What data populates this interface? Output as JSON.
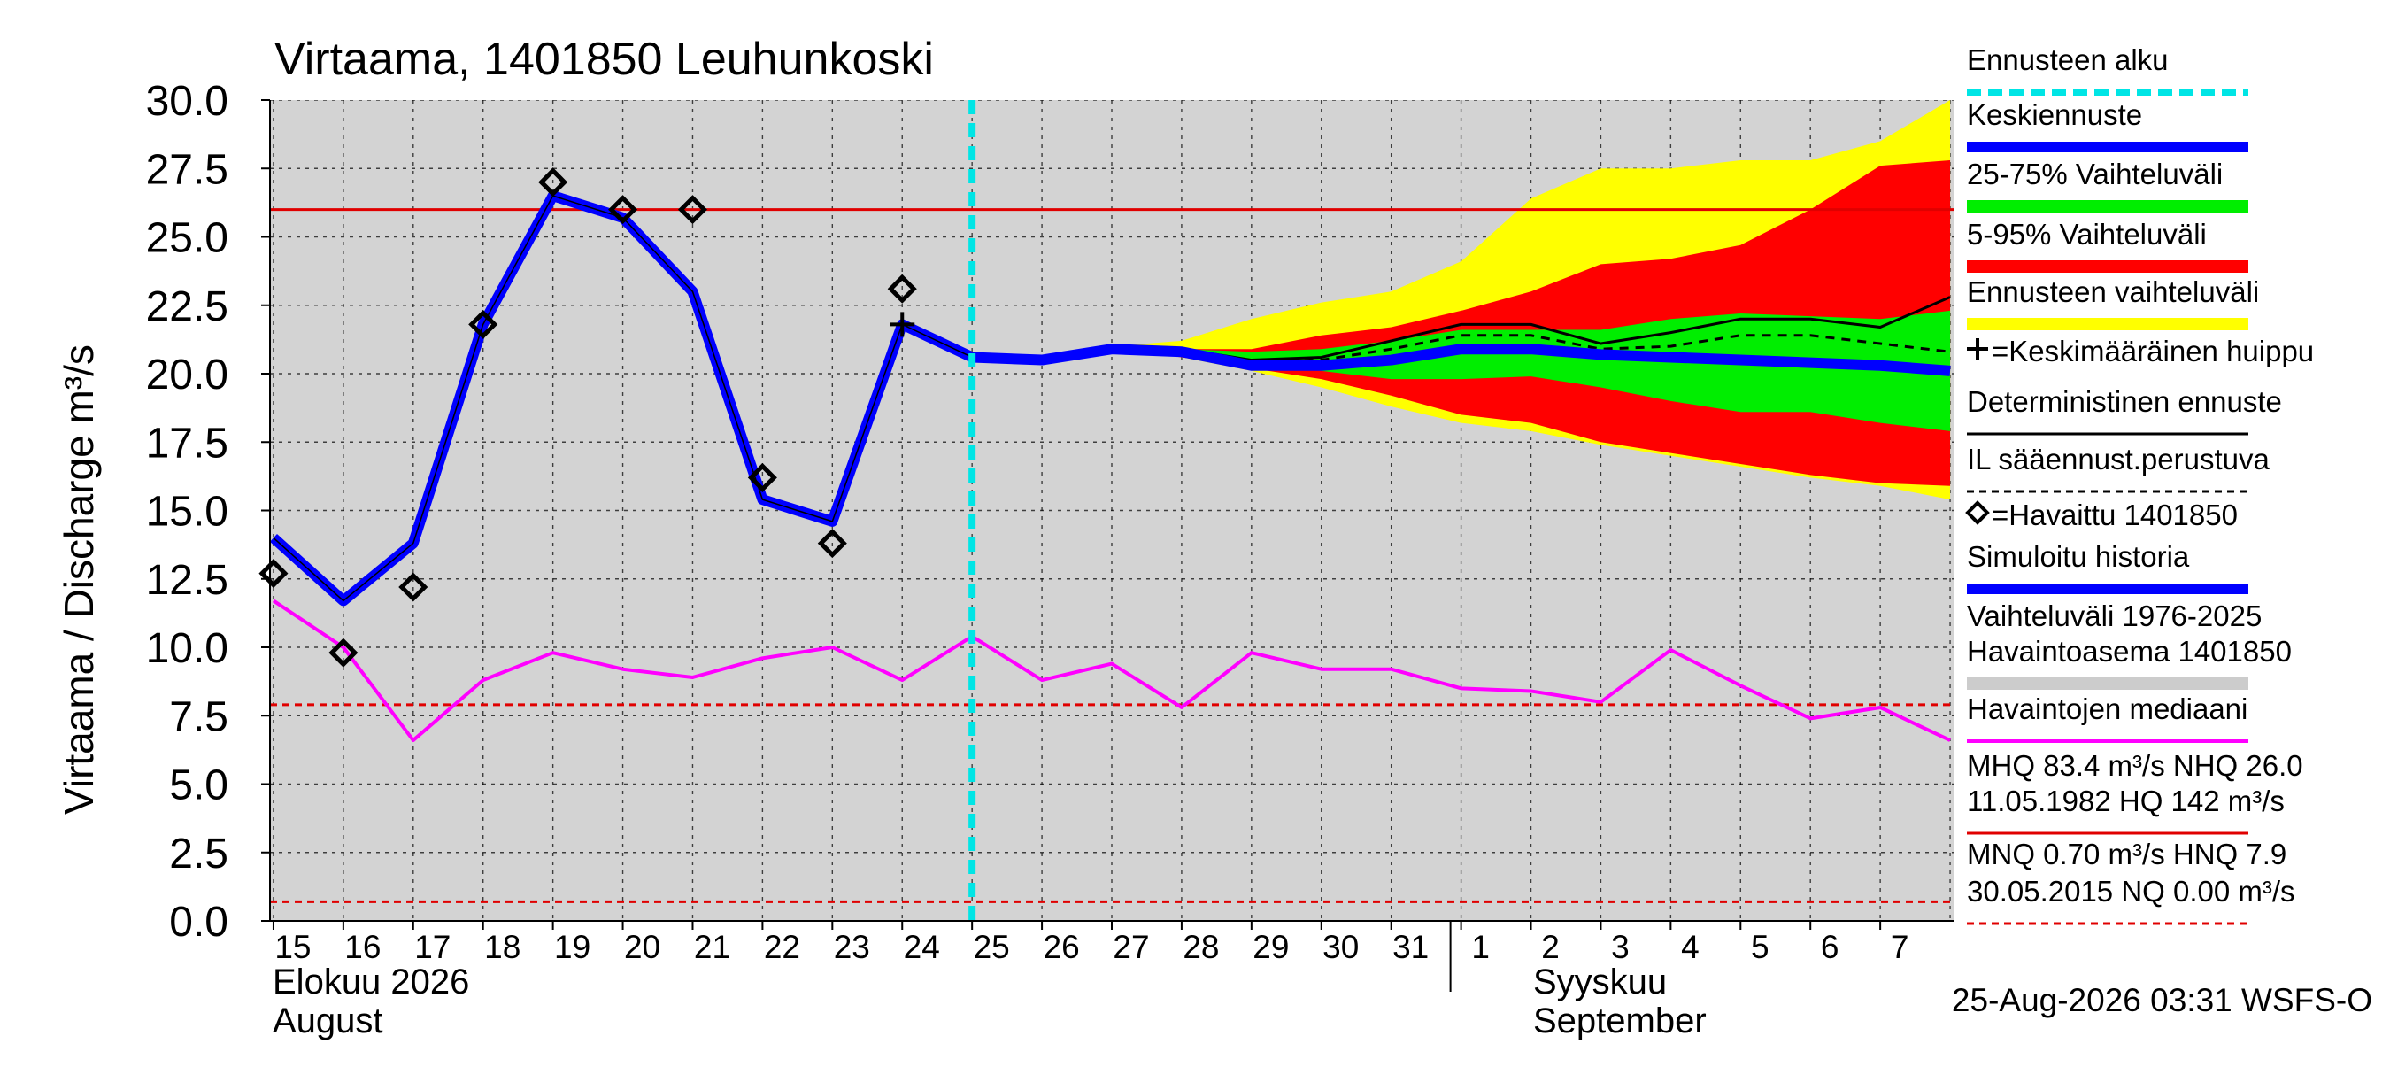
{
  "title": "Virtaama, 1401850 Leuhunkoski",
  "ylabel": "Virtaama / Discharge    m³/s",
  "footer": "25-Aug-2026 03:31 WSFS-O",
  "colors": {
    "observed_band": "#d3d3d3",
    "forecast_range": "#ffff00",
    "band_5_95": "#ff0000",
    "band_25_75": "#00ee00",
    "mean_forecast": "#0000ff",
    "simulated_history": "#0000ff",
    "median": "#ff00ff",
    "forecast_start": "#00e5e5",
    "threshold": "#e00000"
  },
  "x_axis": {
    "day_labels": [
      "15",
      "16",
      "17",
      "18",
      "19",
      "20",
      "21",
      "22",
      "23",
      "24",
      "25",
      "26",
      "27",
      "28",
      "29",
      "30",
      "31",
      "1",
      "2",
      "3",
      "4",
      "5",
      "6",
      "7"
    ],
    "month_labels": [
      {
        "line1": "Elokuu   2026",
        "line2": "August"
      },
      {
        "line1": "Syyskuu",
        "line2": "September"
      }
    ]
  },
  "legend": [
    {
      "label": "Ennusteen alku",
      "style": "cyan-dash"
    },
    {
      "label": "Keskiennuste",
      "style": "blue-thick"
    },
    {
      "label": "25-75% Vaihteluväli",
      "style": "green-thick"
    },
    {
      "label": "5-95% Vaihteluväli",
      "style": "red-thick"
    },
    {
      "label": "Ennusteen vaihteluväli",
      "style": "yellow-thick"
    },
    {
      "label": "=Keskimääräinen huippu",
      "style": "plus-marker"
    },
    {
      "label": "Deterministinen ennuste",
      "style": "black-thin"
    },
    {
      "label": "IL sääennust.perustuva",
      "style": "black-dash"
    },
    {
      "label": "=Havaittu 1401850",
      "style": "diamond-marker"
    },
    {
      "label": "Simuloitu historia",
      "style": "blue-thick"
    },
    {
      "label": "Vaihteluväli 1976-2025",
      "style": "none"
    },
    {
      "label": "Havaintoasema 1401850",
      "style": "grey-thick"
    },
    {
      "label": "Havaintojen mediaani",
      "style": "magenta-thin"
    },
    {
      "label": "MHQ 83.4 m³/s NHQ 26.0",
      "style": "none"
    },
    {
      "label": "11.05.1982 HQ  142 m³/s",
      "style": "red-thin"
    },
    {
      "label": "MNQ 0.70 m³/s HNQ  7.9",
      "style": "none"
    },
    {
      "label": "30.05.2015 NQ 0.00 m³/s",
      "style": "red-dash"
    }
  ],
  "chart_data": {
    "type": "line",
    "ylim": [
      0,
      30
    ],
    "y_ticks": [
      "0.0",
      "2.5",
      "5.0",
      "7.5",
      "10.0",
      "12.5",
      "15.0",
      "17.5",
      "20.0",
      "22.5",
      "25.0",
      "27.5",
      "30.0"
    ],
    "x_range": [
      15,
      39
    ],
    "forecast_start_x": 25,
    "thresholds": [
      {
        "name": "NHQ",
        "value": 26.0
      },
      {
        "name": "HNQ",
        "value": 7.9
      },
      {
        "name": "MNQ",
        "value": 0.7
      }
    ],
    "observed": {
      "x": [
        15,
        16,
        17,
        18,
        19,
        20,
        21,
        22,
        23,
        24
      ],
      "y": [
        12.7,
        9.8,
        12.2,
        21.8,
        27.0,
        26.0,
        26.0,
        16.2,
        13.8,
        23.1
      ]
    },
    "simulated_history": {
      "x": [
        15,
        16,
        17,
        18,
        19,
        20,
        21,
        22,
        23,
        24,
        25
      ],
      "y": [
        14.0,
        11.7,
        13.8,
        21.8,
        26.5,
        25.7,
        23.0,
        15.4,
        14.6,
        21.8,
        20.6
      ]
    },
    "mean_peak": {
      "x": 24,
      "y": 21.8
    },
    "mean_forecast": {
      "x": [
        25,
        26,
        27,
        28,
        29,
        30,
        31,
        32,
        33,
        34,
        35,
        36,
        37,
        38,
        39
      ],
      "y": [
        20.6,
        20.5,
        20.9,
        20.8,
        20.3,
        20.3,
        20.5,
        20.9,
        20.9,
        20.7,
        20.6,
        20.5,
        20.4,
        20.3,
        20.1
      ]
    },
    "deterministic": {
      "x": [
        25,
        26,
        27,
        28,
        29,
        30,
        31,
        32,
        33,
        34,
        35,
        36,
        37,
        38,
        39
      ],
      "y": [
        20.6,
        20.5,
        20.9,
        20.9,
        20.5,
        20.6,
        21.2,
        21.8,
        21.8,
        21.1,
        21.5,
        22.0,
        22.0,
        21.7,
        22.8
      ]
    },
    "weather_based": {
      "x": [
        25,
        26,
        27,
        28,
        29,
        30,
        31,
        32,
        33,
        34,
        35,
        36,
        37,
        38,
        39
      ],
      "y": [
        20.6,
        20.5,
        20.9,
        20.9,
        20.4,
        20.5,
        20.9,
        21.4,
        21.4,
        20.9,
        21.0,
        21.4,
        21.4,
        21.1,
        20.8
      ]
    },
    "band_x": [
      27,
      28,
      29,
      30,
      31,
      32,
      33,
      34,
      35,
      36,
      37,
      38,
      39
    ],
    "range_low": [
      20.9,
      20.6,
      20.1,
      19.5,
      18.8,
      18.2,
      17.9,
      17.4,
      17.0,
      16.6,
      16.2,
      15.9,
      15.4
    ],
    "range_high": [
      21.0,
      21.2,
      22.0,
      22.6,
      23.0,
      24.1,
      26.4,
      27.5,
      27.5,
      27.8,
      27.8,
      28.5,
      30.0
    ],
    "band_5_95_low": [
      20.9,
      20.6,
      20.2,
      19.8,
      19.2,
      18.5,
      18.2,
      17.5,
      17.1,
      16.7,
      16.3,
      16.0,
      15.9
    ],
    "band_5_95_high": [
      20.9,
      20.9,
      20.9,
      21.4,
      21.7,
      22.3,
      23.0,
      24.0,
      24.2,
      24.7,
      26.0,
      27.6,
      27.8
    ],
    "band_25_75_low": [
      20.9,
      20.8,
      20.4,
      20.1,
      19.8,
      19.8,
      19.9,
      19.5,
      19.0,
      18.6,
      18.6,
      18.2,
      17.9
    ],
    "band_25_75_high": [
      20.9,
      20.9,
      20.8,
      20.9,
      21.2,
      21.6,
      21.6,
      21.6,
      22.0,
      22.2,
      22.1,
      22.0,
      22.3
    ],
    "median": {
      "x": [
        15,
        16,
        17,
        18,
        19,
        20,
        21,
        22,
        23,
        24,
        25,
        26,
        27,
        28,
        29,
        30,
        31,
        32,
        33,
        34,
        35,
        36,
        37,
        38,
        39
      ],
      "y": [
        11.7,
        10.0,
        6.6,
        8.8,
        9.8,
        9.2,
        8.9,
        9.6,
        10.0,
        8.8,
        10.4,
        8.8,
        9.4,
        7.8,
        9.8,
        9.2,
        9.2,
        8.5,
        8.4,
        8.0,
        9.9,
        8.6,
        7.4,
        7.8,
        6.6
      ]
    }
  }
}
